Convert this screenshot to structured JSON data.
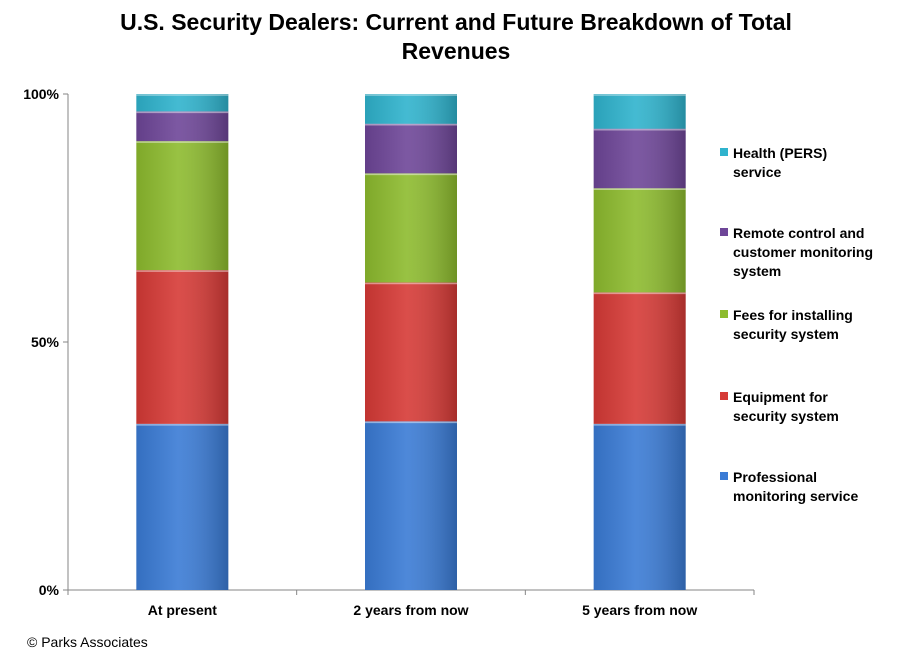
{
  "chart_data": {
    "type": "bar",
    "stacked": true,
    "percent_stacked": true,
    "title": "U.S. Security Dealers: Current and Future Breakdown of Total Revenues",
    "categories": [
      "At present",
      "2 years from now",
      "5 years from now"
    ],
    "y_ticks": [
      "0%",
      "50%",
      "100%"
    ],
    "ylim": [
      0,
      100
    ],
    "grid": false,
    "legend_position": "right",
    "series": [
      {
        "name": "Professional monitoring service",
        "color": "#3a7bd5",
        "values": [
          33.5,
          34,
          33.5
        ]
      },
      {
        "name": "Equipment for security system",
        "color": "#d63a36",
        "values": [
          31,
          28,
          26.5
        ]
      },
      {
        "name": "Fees for installing security system",
        "color": "#8dbb2e",
        "values": [
          26,
          22,
          21
        ]
      },
      {
        "name": "Remote control and customer monitoring system",
        "color": "#6e4698",
        "values": [
          6,
          10,
          12
        ]
      },
      {
        "name": "Health (PERS) service",
        "color": "#2fb3cd",
        "values": [
          3.5,
          6,
          7
        ]
      }
    ],
    "legend": [
      {
        "lines": [
          "Health (PERS)",
          "service"
        ],
        "color": "#2fb3cd"
      },
      {
        "lines": [
          "Remote control and",
          "customer monitoring",
          "system"
        ],
        "color": "#6e4698"
      },
      {
        "lines": [
          "Fees for installing",
          "security system"
        ],
        "color": "#8dbb2e"
      },
      {
        "lines": [
          "Equipment for",
          "security system"
        ],
        "color": "#d63a36"
      },
      {
        "lines": [
          "Professional",
          "monitoring service"
        ],
        "color": "#3a7bd5"
      }
    ]
  },
  "chart_title_lines": [
    "U.S. Security Dealers: Current and Future Breakdown of Total",
    "Revenues"
  ],
  "copyright": "© Parks Associates"
}
